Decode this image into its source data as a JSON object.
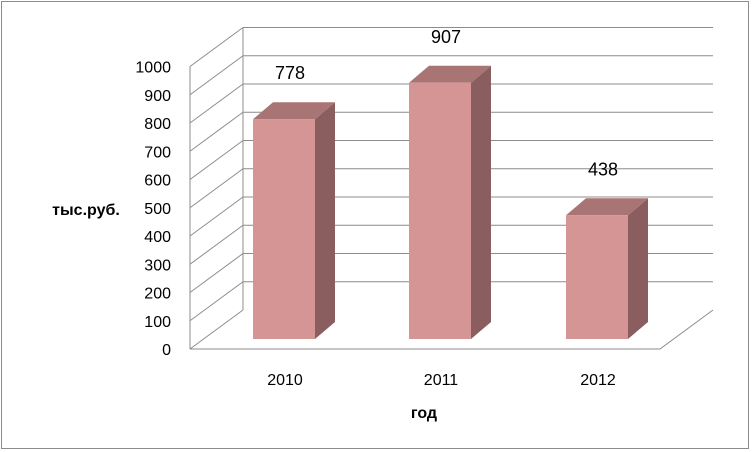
{
  "chart_data": {
    "type": "bar",
    "style": "3d-column",
    "categories": [
      "2010",
      "2011",
      "2012"
    ],
    "values": [
      778,
      907,
      438
    ],
    "data_labels": [
      "778",
      "907",
      "438"
    ],
    "xlabel": "год",
    "ylabel": "тыс.руб.",
    "ylim": [
      0,
      1000
    ],
    "y_ticks": [
      "0",
      "100",
      "200",
      "300",
      "400",
      "500",
      "600",
      "700",
      "800",
      "900",
      "1000"
    ],
    "grid": true,
    "legend": "none",
    "colors": {
      "bar_front": "#d59595",
      "bar_side": "#8a5e5e",
      "bar_top": "#a87474",
      "grid": "#8c8c8c"
    }
  }
}
